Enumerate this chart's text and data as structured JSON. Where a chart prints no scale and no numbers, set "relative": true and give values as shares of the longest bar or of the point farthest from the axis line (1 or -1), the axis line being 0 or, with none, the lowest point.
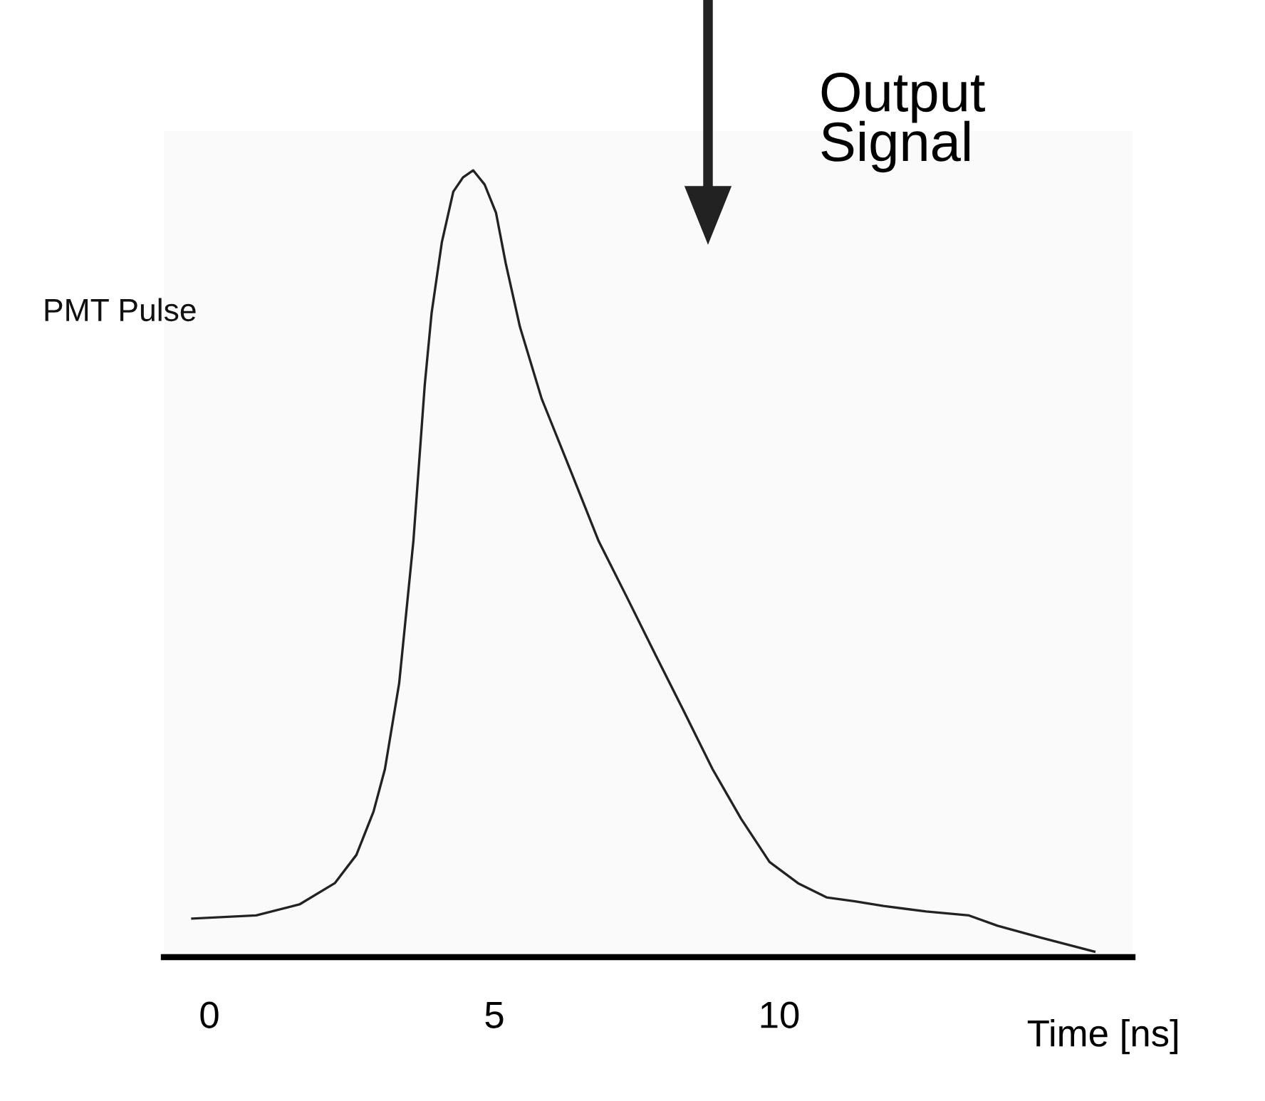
{
  "chart_data": {
    "type": "line",
    "relative": true,
    "xlabel": "Time [ns]",
    "xlim": [
      -0.8,
      16.2
    ],
    "xticks": [
      0,
      5,
      10
    ],
    "grid": false,
    "legend": false,
    "marker": "none",
    "line_style": "solid",
    "annotations": [
      "Output\nSignal"
    ],
    "series": [
      {
        "name": "PMT Pulse",
        "color": "#222222",
        "x": [
          -0.3,
          0.82,
          1.58,
          2.2,
          2.58,
          2.88,
          3.08,
          3.33,
          3.58,
          3.78,
          3.9,
          4.08,
          4.28,
          4.45,
          4.63,
          4.83,
          5.03,
          5.2,
          5.45,
          5.83,
          6.33,
          6.83,
          7.33,
          7.83,
          8.33,
          8.83,
          9.33,
          9.83,
          10.33,
          10.83,
          11.33,
          11.83,
          12.58,
          13.33,
          13.83,
          14.58,
          15.53
        ],
        "values": [
          0.049,
          0.053,
          0.067,
          0.094,
          0.13,
          0.185,
          0.239,
          0.348,
          0.529,
          0.728,
          0.819,
          0.909,
          0.973,
          0.991,
          1,
          0.982,
          0.946,
          0.882,
          0.801,
          0.71,
          0.62,
          0.529,
          0.457,
          0.384,
          0.312,
          0.239,
          0.176,
          0.121,
          0.094,
          0.076,
          0.071,
          0.065,
          0.058,
          0.053,
          0.04,
          0.025,
          0.007
        ]
      }
    ]
  }
}
